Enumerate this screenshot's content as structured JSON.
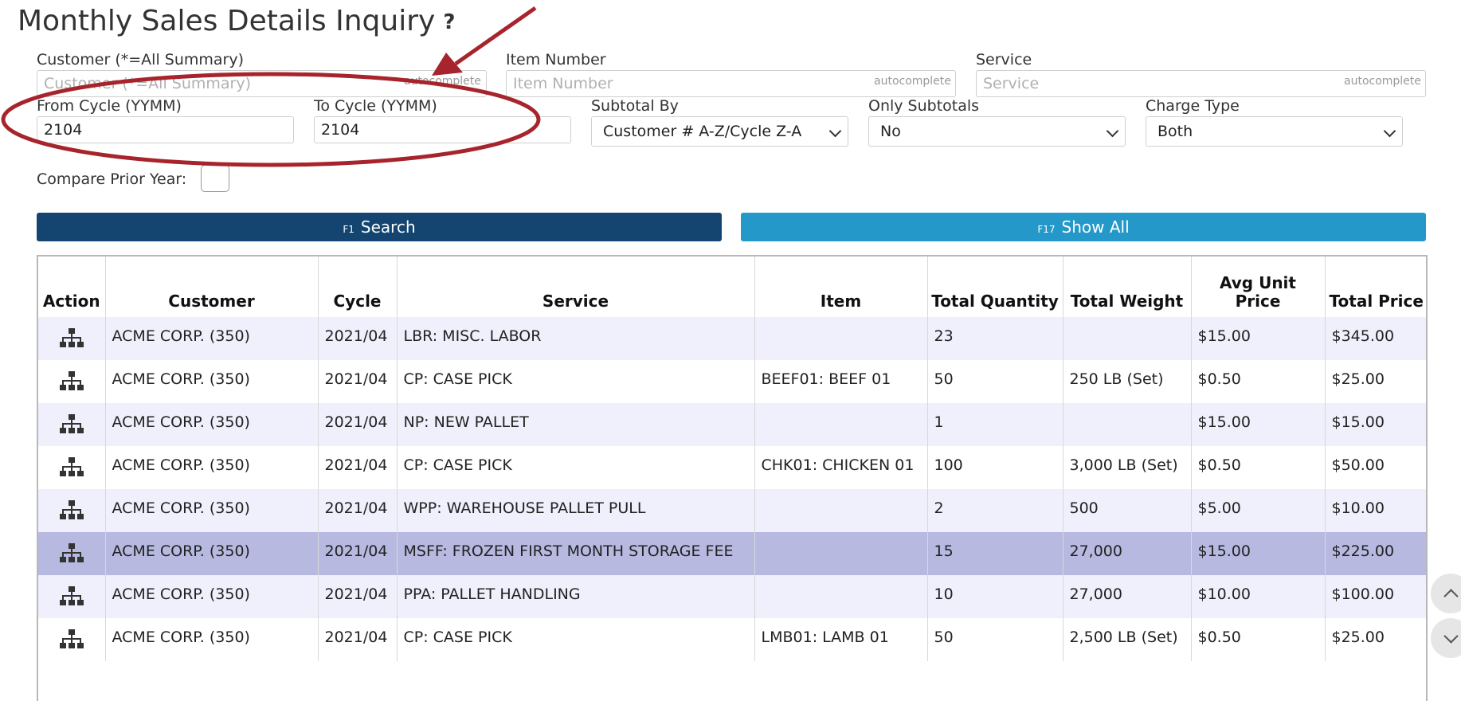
{
  "page": {
    "title": "Monthly Sales Details Inquiry",
    "help_glyph": "?"
  },
  "filters": {
    "customer": {
      "label": "Customer (*=All Summary)",
      "placeholder": "Customer (*=All Summary)",
      "hint": "autocomplete"
    },
    "item_number": {
      "label": "Item Number",
      "placeholder": "Item Number",
      "hint": "autocomplete"
    },
    "service": {
      "label": "Service",
      "placeholder": "Service",
      "hint": "autocomplete"
    },
    "from_cycle": {
      "label": "From Cycle (YYMM)",
      "value": "2104"
    },
    "to_cycle": {
      "label": "To Cycle (YYMM)",
      "value": "2104"
    },
    "subtotal_by": {
      "label": "Subtotal By",
      "selected": "Customer # A-Z/Cycle Z-A"
    },
    "only_subtotals": {
      "label": "Only Subtotals",
      "selected": "No"
    },
    "charge_type": {
      "label": "Charge Type",
      "selected": "Both"
    },
    "compare_prior_year": {
      "label": "Compare Prior Year:",
      "checked": false
    }
  },
  "buttons": {
    "search": {
      "fkey": "F1",
      "label": "Search"
    },
    "show_all": {
      "fkey": "F17",
      "label": "Show All"
    }
  },
  "table": {
    "headers": {
      "action": "Action",
      "customer": "Customer",
      "cycle": "Cycle",
      "service": "Service",
      "item": "Item",
      "total_quantity": "Total Quantity",
      "total_weight": "Total Weight",
      "avg_unit_price": "Avg Unit Price",
      "total_price": "Total Price"
    },
    "action_icon": "org-chart-icon",
    "rows": [
      {
        "customer": "ACME CORP. (350)",
        "cycle": "2021/04",
        "service": "LBR: MISC. LABOR",
        "item": "",
        "qty": "23",
        "weight": "",
        "avg": "$15.00",
        "total": "$345.00"
      },
      {
        "customer": "ACME CORP. (350)",
        "cycle": "2021/04",
        "service": "CP: CASE PICK",
        "item": "BEEF01: BEEF 01",
        "qty": "50",
        "weight": "250 LB (Set)",
        "avg": "$0.50",
        "total": "$25.00"
      },
      {
        "customer": "ACME CORP. (350)",
        "cycle": "2021/04",
        "service": "NP: NEW PALLET",
        "item": "",
        "qty": "1",
        "weight": "",
        "avg": "$15.00",
        "total": "$15.00"
      },
      {
        "customer": "ACME CORP. (350)",
        "cycle": "2021/04",
        "service": "CP: CASE PICK",
        "item": "CHK01: CHICKEN 01",
        "qty": "100",
        "weight": "3,000 LB (Set)",
        "avg": "$0.50",
        "total": "$50.00"
      },
      {
        "customer": "ACME CORP. (350)",
        "cycle": "2021/04",
        "service": "WPP: WAREHOUSE PALLET PULL",
        "item": "",
        "qty": "2",
        "weight": "500",
        "avg": "$5.00",
        "total": "$10.00"
      },
      {
        "customer": "ACME CORP. (350)",
        "cycle": "2021/04",
        "service": "MSFF: FROZEN FIRST MONTH STORAGE FEE",
        "item": "",
        "qty": "15",
        "weight": "27,000",
        "avg": "$15.00",
        "total": "$225.00"
      },
      {
        "customer": "ACME CORP. (350)",
        "cycle": "2021/04",
        "service": "PPA: PALLET HANDLING",
        "item": "",
        "qty": "10",
        "weight": "27,000",
        "avg": "$10.00",
        "total": "$100.00"
      },
      {
        "customer": "ACME CORP. (350)",
        "cycle": "2021/04",
        "service": "CP: CASE PICK",
        "item": "LMB01: LAMB 01",
        "qty": "50",
        "weight": "2,500 LB (Set)",
        "avg": "$0.50",
        "total": "$25.00"
      }
    ],
    "selected_row_index": 5
  },
  "colors": {
    "search_button": "#134570",
    "show_all_button": "#2398c9",
    "row_stripe": "#eff0fb",
    "row_selected": "#b7b9e0",
    "annotation": "#a8242c"
  }
}
